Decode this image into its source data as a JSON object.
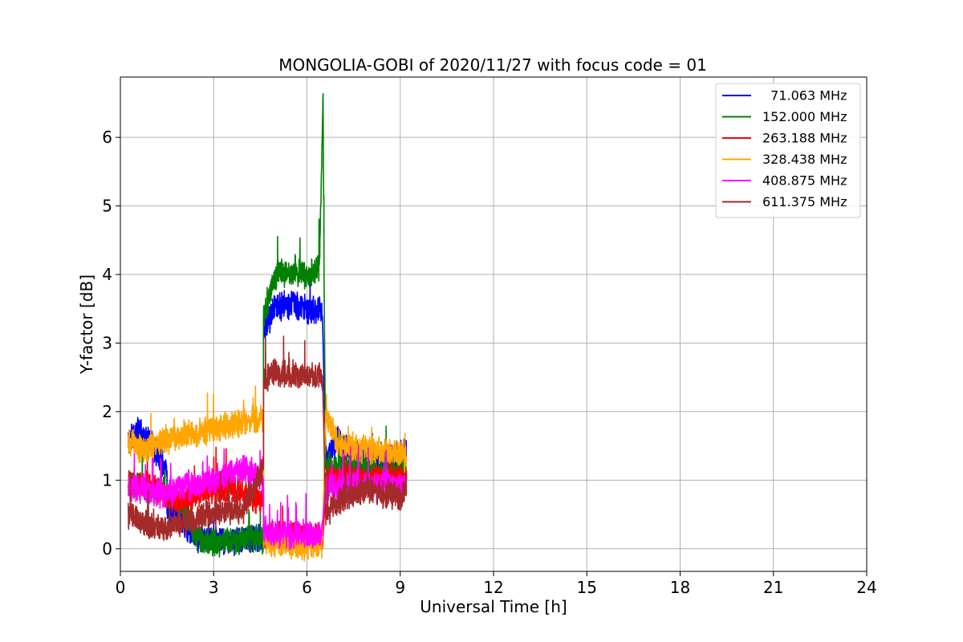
{
  "chart_data": {
    "type": "line",
    "title": "MONGOLIA-GOBI of 2020/11/27 with focus code = 01",
    "xlabel": "Universal Time [h]",
    "ylabel": "Y-factor [dB]",
    "xlim": [
      0,
      24
    ],
    "ylim": [
      -0.33,
      6.88
    ],
    "xticks": [
      0,
      3,
      6,
      9,
      12,
      15,
      18,
      21,
      24
    ],
    "yticks": [
      0,
      1,
      2,
      3,
      4,
      5,
      6
    ],
    "grid": true,
    "legend_position": "top-right",
    "series": [
      {
        "name": "  71.063 MHz",
        "color": "#0000ff",
        "segments": [
          {
            "x": [
              0.25,
              0.6,
              1.0,
              1.5
            ],
            "y": [
              1.6,
              1.7,
              1.55,
              1.1
            ]
          },
          {
            "x": [
              1.5,
              2.0,
              2.5,
              3.0,
              3.5,
              4.0,
              4.6
            ],
            "y": [
              0.6,
              0.4,
              0.15,
              0.15,
              0.1,
              0.15,
              0.15
            ]
          },
          {
            "x": [
              4.6,
              5.0,
              5.5,
              6.0,
              6.5
            ],
            "y": [
              3.2,
              3.55,
              3.55,
              3.5,
              3.45
            ]
          },
          {
            "x": [
              6.6,
              7.0,
              7.5,
              8.0,
              8.5,
              9.2
            ],
            "y": [
              1.3,
              1.6,
              1.4,
              1.3,
              1.3,
              1.4
            ]
          }
        ]
      },
      {
        "name": "152.000 MHz",
        "color": "#008000",
        "segments": [
          {
            "x": [
              0.25,
              0.8,
              1.5,
              2.0,
              2.5,
              3.0,
              3.5,
              4.0,
              4.6
            ],
            "y": [
              0.95,
              0.9,
              0.8,
              0.6,
              0.15,
              0.1,
              0.1,
              0.15,
              0.15
            ]
          },
          {
            "x": [
              4.6,
              5.0,
              5.5,
              6.0,
              6.4,
              6.52,
              6.55
            ],
            "y": [
              3.4,
              4.0,
              4.05,
              4.0,
              4.1,
              6.5,
              4.0
            ]
          },
          {
            "x": [
              6.6,
              7.5,
              8.5,
              9.2
            ],
            "y": [
              1.2,
              1.2,
              1.1,
              1.2
            ]
          }
        ]
      },
      {
        "name": "263.188 MHz",
        "color": "#ff0000",
        "segments": [
          {
            "x": [
              0.25,
              1.0,
              1.6,
              2.0,
              2.5,
              3.0,
              3.5,
              4.0,
              4.6
            ],
            "y": [
              0.95,
              0.9,
              0.75,
              0.7,
              0.8,
              0.85,
              0.9,
              0.8,
              0.7
            ]
          },
          {
            "x": [
              4.6,
              5.5,
              6.5
            ],
            "y": [
              0.2,
              0.2,
              0.2
            ]
          },
          {
            "x": [
              6.6,
              8.0,
              9.2
            ],
            "y": [
              1.0,
              1.0,
              1.0
            ]
          }
        ]
      },
      {
        "name": "328.438 MHz",
        "color": "#ffa500",
        "segments": [
          {
            "x": [
              0.25,
              0.8,
              1.5,
              2.0,
              2.5,
              3.0,
              3.5,
              4.0,
              4.6
            ],
            "y": [
              1.55,
              1.45,
              1.6,
              1.65,
              1.7,
              1.75,
              1.8,
              1.85,
              1.9
            ]
          },
          {
            "x": [
              4.6,
              5.5,
              6.5
            ],
            "y": [
              0.1,
              0.05,
              0.05
            ]
          },
          {
            "x": [
              6.6,
              6.8,
              7.0,
              8.0,
              9.2
            ],
            "y": [
              1.95,
              1.75,
              1.55,
              1.45,
              1.35
            ]
          }
        ]
      },
      {
        "name": "408.875 MHz",
        "color": "#ff00ff",
        "segments": [
          {
            "x": [
              0.25,
              1.0,
              1.5,
              2.0,
              2.5,
              3.0,
              3.5,
              4.0,
              4.6
            ],
            "y": [
              0.9,
              0.85,
              0.8,
              0.9,
              0.95,
              1.0,
              1.1,
              1.15,
              1.0
            ]
          },
          {
            "x": [
              4.6,
              5.5,
              6.5
            ],
            "y": [
              0.25,
              0.2,
              0.2
            ]
          },
          {
            "x": [
              6.6,
              8.0,
              9.2
            ],
            "y": [
              0.9,
              0.95,
              0.9
            ]
          }
        ]
      },
      {
        "name": "611.375 MHz",
        "color": "#a52a2a",
        "segments": [
          {
            "x": [
              0.25,
              0.8,
              1.5,
              2.0,
              2.5,
              3.0,
              3.5,
              4.0,
              4.3,
              4.6
            ],
            "y": [
              0.5,
              0.35,
              0.3,
              0.4,
              0.45,
              0.5,
              0.55,
              0.6,
              0.9,
              1.2
            ]
          },
          {
            "x": [
              4.6,
              5.0,
              5.5,
              6.0,
              6.5
            ],
            "y": [
              2.45,
              2.6,
              2.55,
              2.5,
              2.5
            ]
          },
          {
            "x": [
              6.6,
              7.0,
              7.5,
              8.0,
              8.5,
              9.0,
              9.2
            ],
            "y": [
              0.5,
              0.7,
              0.8,
              0.85,
              0.8,
              0.75,
              0.9
            ]
          }
        ]
      }
    ]
  }
}
